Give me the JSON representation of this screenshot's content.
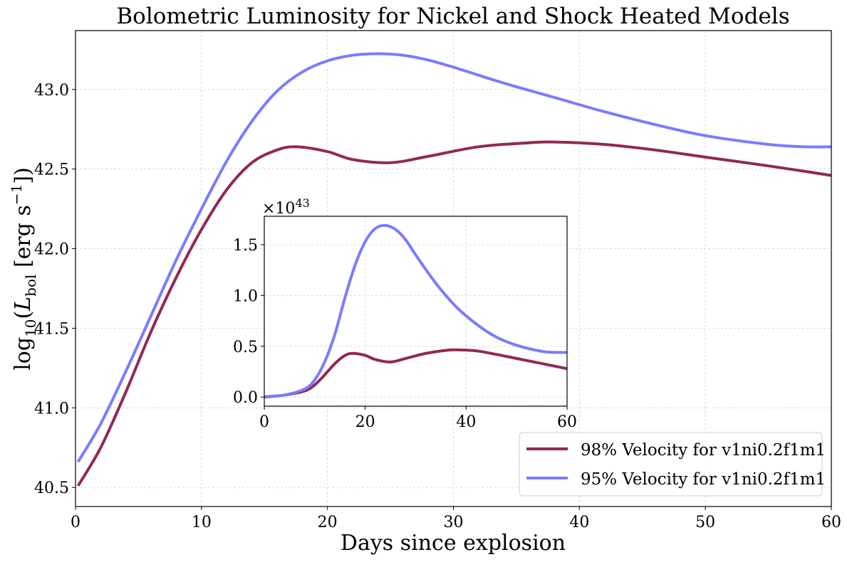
{
  "colors": {
    "series_98": "#922855",
    "series_95": "#7b7bff"
  },
  "chart_data": [
    {
      "type": "line",
      "role": "main",
      "title": "Bolometric Luminosity for Nickel and Shock Heated Models",
      "xlabel": "Days since explosion",
      "ylabel": "log10(L_bol [erg s^-1])",
      "ylabel_parts": {
        "log": "log",
        "log_sub": "10",
        "lparen": "(",
        "var": "L",
        "var_sub": "bol",
        "unit": " [erg s",
        "exp": "−1",
        "rparen": "])"
      },
      "xlim": [
        0,
        60
      ],
      "ylim": [
        40.38,
        43.37
      ],
      "xticks": [
        0,
        10,
        20,
        30,
        40,
        50,
        60
      ],
      "yticks": [
        40.5,
        41.0,
        41.5,
        42.0,
        42.5,
        43.0
      ],
      "ytick_labels": [
        "40.5",
        "41.0",
        "41.5",
        "42.0",
        "42.5",
        "43.0"
      ],
      "grid": true,
      "legend_position": "lower-right",
      "series": [
        {
          "name": "98% Velocity for v1ni0.2f1m1",
          "color": "#922855",
          "x": [
            0.2,
            2,
            4,
            6,
            8,
            10,
            12,
            14,
            16,
            17.6,
            20,
            22,
            25,
            28,
            32,
            36,
            38,
            42,
            46,
            50,
            55,
            60
          ],
          "y": [
            40.51,
            40.75,
            41.1,
            41.48,
            41.82,
            42.12,
            42.37,
            42.54,
            42.62,
            42.64,
            42.61,
            42.56,
            42.54,
            42.58,
            42.64,
            42.665,
            42.67,
            42.655,
            42.62,
            42.575,
            42.52,
            42.46
          ]
        },
        {
          "name": "95% Velocity for v1ni0.2f1m1",
          "color": "#7b7bff",
          "x": [
            0.2,
            2,
            4,
            6,
            8,
            10,
            12,
            14,
            16,
            18,
            20,
            22,
            24,
            26,
            28,
            30,
            34,
            38,
            42,
            46,
            50,
            55,
            58,
            60
          ],
          "y": [
            40.66,
            40.9,
            41.23,
            41.58,
            41.93,
            42.25,
            42.55,
            42.8,
            42.99,
            43.11,
            43.18,
            43.215,
            43.225,
            43.215,
            43.185,
            43.14,
            43.04,
            42.95,
            42.86,
            42.78,
            42.71,
            42.655,
            42.64,
            42.64
          ]
        }
      ]
    },
    {
      "type": "line",
      "role": "inset",
      "offset_text": "×10",
      "offset_exp": "43",
      "xlim": [
        0,
        60
      ],
      "ylim": [
        -0.09,
        1.78
      ],
      "xticks": [
        0,
        20,
        40,
        60
      ],
      "yticks": [
        0.0,
        0.5,
        1.0,
        1.5
      ],
      "ytick_labels": [
        "0.0",
        "0.5",
        "1.0",
        "1.5"
      ],
      "grid": true,
      "series": [
        {
          "name": "98% Velocity for v1ni0.2f1m1",
          "color": "#922855",
          "x": [
            0,
            4,
            8,
            10,
            12,
            14,
            16,
            17.6,
            20,
            22,
            25,
            28,
            32,
            36,
            38,
            42,
            46,
            50,
            55,
            60
          ],
          "y": [
            0.0,
            0.02,
            0.06,
            0.12,
            0.22,
            0.33,
            0.41,
            0.43,
            0.41,
            0.37,
            0.345,
            0.38,
            0.43,
            0.46,
            0.465,
            0.455,
            0.42,
            0.38,
            0.33,
            0.28
          ]
        },
        {
          "name": "95% Velocity for v1ni0.2f1m1",
          "color": "#7b7bff",
          "x": [
            0,
            4,
            8,
            10,
            12,
            14,
            16,
            18,
            20,
            22,
            24,
            26,
            28,
            30,
            34,
            38,
            42,
            46,
            50,
            55,
            58,
            60
          ],
          "y": [
            0.005,
            0.02,
            0.08,
            0.17,
            0.35,
            0.62,
            0.98,
            1.3,
            1.53,
            1.66,
            1.69,
            1.65,
            1.55,
            1.4,
            1.12,
            0.89,
            0.72,
            0.59,
            0.51,
            0.45,
            0.44,
            0.44
          ]
        }
      ]
    }
  ]
}
